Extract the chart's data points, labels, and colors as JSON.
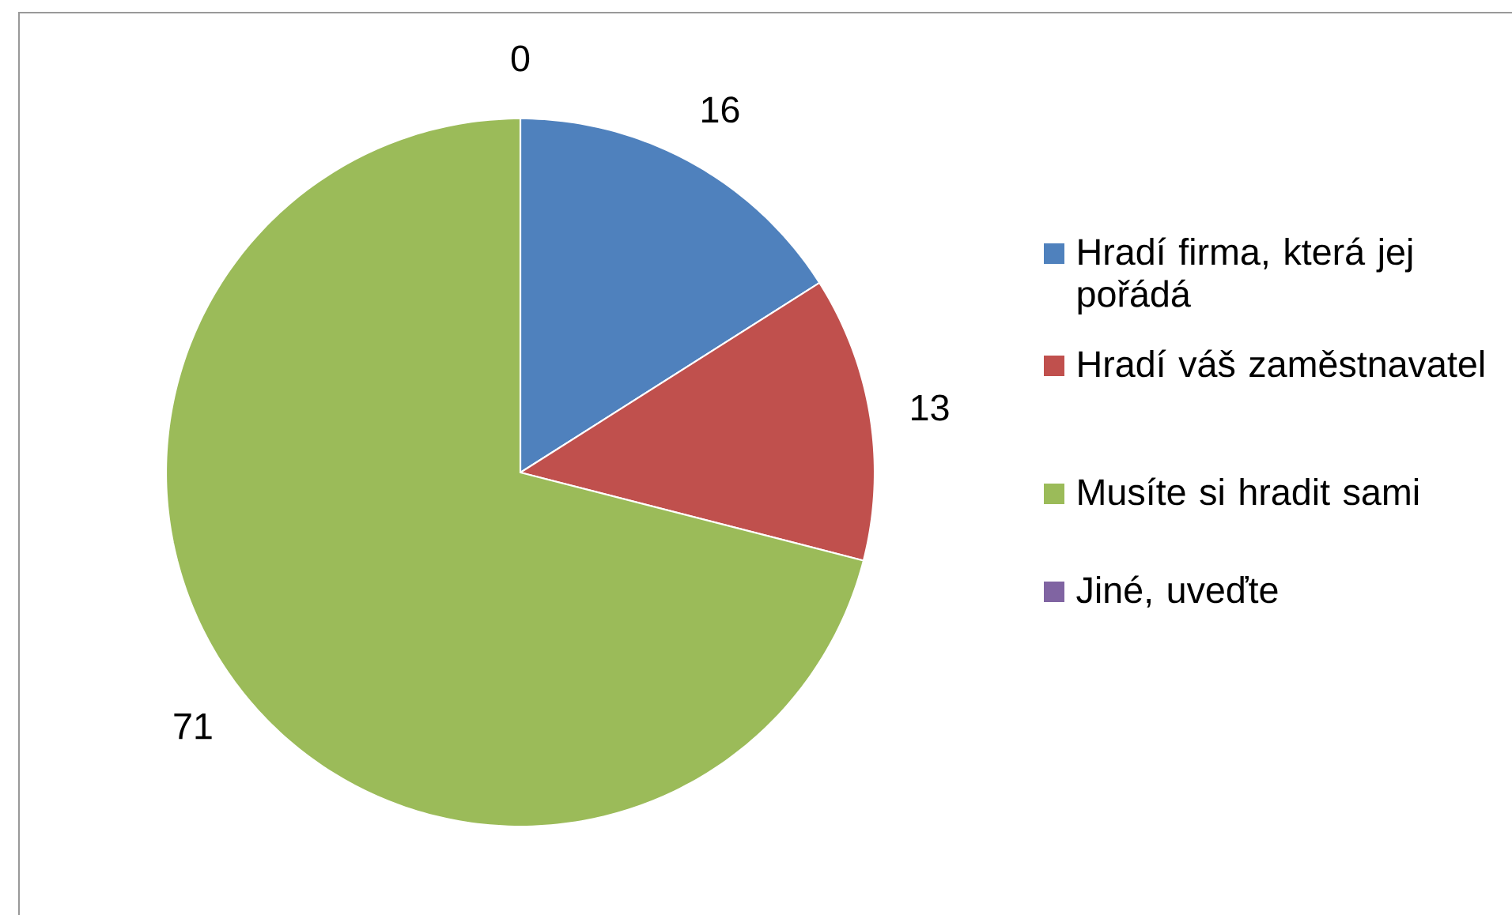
{
  "chart_data": {
    "type": "pie",
    "categories": [
      "Hradí firma, která jej pořádá",
      "Hradí váš zaměstnavatel",
      "Musíte si hradit sami",
      "Jiné, uveďte"
    ],
    "values": [
      16,
      13,
      71,
      0
    ],
    "colors": [
      "#4f81bd",
      "#c0504d",
      "#9bbb59",
      "#8064a2"
    ],
    "value_labels": [
      "16",
      "13",
      "71",
      "0"
    ],
    "legend": "right"
  }
}
